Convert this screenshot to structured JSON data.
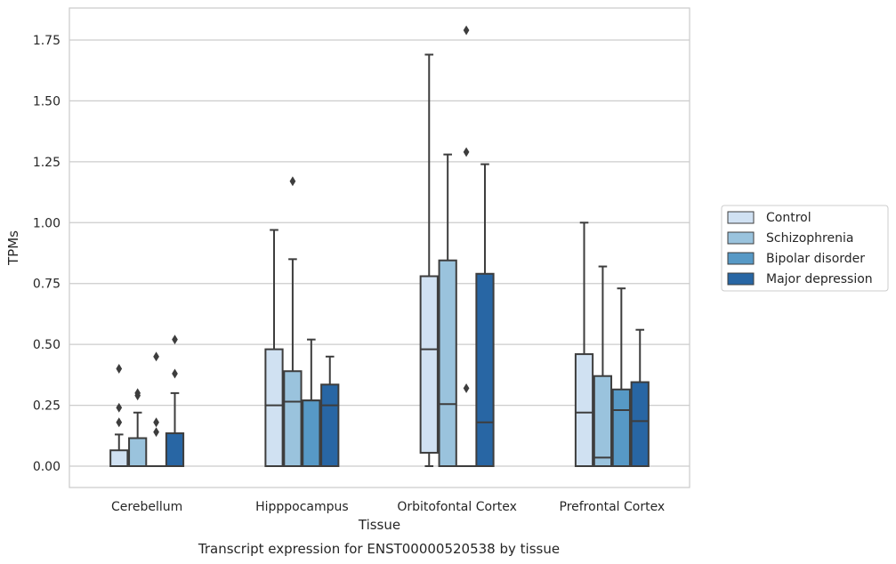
{
  "chart_data": {
    "type": "box",
    "caption": "Transcript expression for ENST00000520538 by tissue",
    "xlabel": "Tissue",
    "ylabel": "TPMs",
    "ylim": [
      -0.09,
      1.88
    ],
    "yticks": [
      0.0,
      0.25,
      0.5,
      0.75,
      1.0,
      1.25,
      1.5,
      1.75
    ],
    "ytick_labels": [
      "0.00",
      "0.25",
      "0.50",
      "0.75",
      "1.00",
      "1.25",
      "1.50",
      "1.75"
    ],
    "grid": true,
    "legend_position": "right",
    "categories": [
      "Cerebellum",
      "Hipppocampus",
      "Orbitofontal Cortex",
      "Prefrontal Cortex"
    ],
    "series": [
      {
        "name": "Control",
        "color": "#d0e1f2",
        "boxes": [
          {
            "whislo": 0.0,
            "q1": 0.0,
            "med": 0.0,
            "q3": 0.065,
            "whishi": 0.13,
            "fliers": [
              0.18,
              0.24,
              0.4
            ]
          },
          {
            "whislo": 0.0,
            "q1": 0.0,
            "med": 0.25,
            "q3": 0.48,
            "whishi": 0.97,
            "fliers": []
          },
          {
            "whislo": 0.0,
            "q1": 0.055,
            "med": 0.48,
            "q3": 0.78,
            "whishi": 1.69,
            "fliers": []
          },
          {
            "whislo": 0.0,
            "q1": 0.0,
            "med": 0.22,
            "q3": 0.46,
            "whishi": 1.0,
            "fliers": []
          }
        ]
      },
      {
        "name": "Schizophrenia",
        "color": "#9ac3dd",
        "boxes": [
          {
            "whislo": 0.0,
            "q1": 0.0,
            "med": 0.0,
            "q3": 0.115,
            "whishi": 0.22,
            "fliers": [
              0.29,
              0.3
            ]
          },
          {
            "whislo": 0.0,
            "q1": 0.0,
            "med": 0.265,
            "q3": 0.39,
            "whishi": 0.85,
            "fliers": [
              1.17
            ]
          },
          {
            "whislo": 0.0,
            "q1": 0.0,
            "med": 0.255,
            "q3": 0.845,
            "whishi": 1.28,
            "fliers": []
          },
          {
            "whislo": 0.0,
            "q1": 0.0,
            "med": 0.035,
            "q3": 0.37,
            "whishi": 0.82,
            "fliers": []
          }
        ]
      },
      {
        "name": "Bipolar disorder",
        "color": "#5799c6",
        "boxes": [
          {
            "whislo": 0.0,
            "q1": 0.0,
            "med": 0.0,
            "q3": 0.0,
            "whishi": 0.0,
            "fliers": [
              0.14,
              0.18,
              0.45
            ]
          },
          {
            "whislo": 0.0,
            "q1": 0.0,
            "med": 0.27,
            "q3": 0.27,
            "whishi": 0.52,
            "fliers": []
          },
          {
            "whislo": 0.0,
            "q1": 0.0,
            "med": 0.0,
            "q3": 0.0,
            "whishi": 0.0,
            "fliers": [
              0.32,
              1.29,
              1.79
            ]
          },
          {
            "whislo": 0.0,
            "q1": 0.0,
            "med": 0.23,
            "q3": 0.315,
            "whishi": 0.73,
            "fliers": []
          }
        ]
      },
      {
        "name": "Major depression",
        "color": "#2866a4",
        "boxes": [
          {
            "whislo": 0.0,
            "q1": 0.0,
            "med": 0.0,
            "q3": 0.135,
            "whishi": 0.3,
            "fliers": [
              0.38,
              0.52
            ]
          },
          {
            "whislo": 0.0,
            "q1": 0.0,
            "med": 0.25,
            "q3": 0.335,
            "whishi": 0.45,
            "fliers": []
          },
          {
            "whislo": 0.0,
            "q1": 0.0,
            "med": 0.18,
            "q3": 0.79,
            "whishi": 1.24,
            "fliers": []
          },
          {
            "whislo": 0.0,
            "q1": 0.0,
            "med": 0.185,
            "q3": 0.345,
            "whishi": 0.56,
            "fliers": []
          }
        ]
      }
    ]
  }
}
